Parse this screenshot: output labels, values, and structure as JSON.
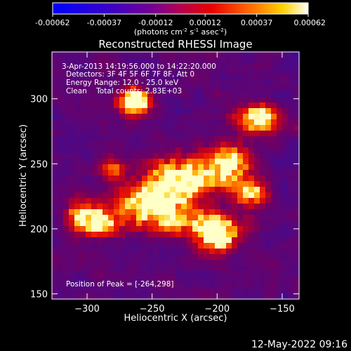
{
  "colorbar": {
    "ticks": [
      "-0.00062",
      "-0.00037",
      "-0.00012",
      "0.00012",
      "0.00037",
      "0.00062"
    ],
    "unit_parts": [
      "(photons cm",
      "-2",
      " s",
      "-1",
      " asec",
      "-2",
      ")"
    ]
  },
  "chart_data": {
    "type": "heatmap",
    "title": "Reconstructed RHESSI Image",
    "xlabel": "Heliocentric X (arcsec)",
    "ylabel": "Heliocentric Y (arcsec)",
    "xlim": [
      -327,
      -137
    ],
    "ylim": [
      146,
      336
    ],
    "xticks": [
      -300,
      -250,
      -200,
      -150
    ],
    "yticks": [
      150,
      200,
      250,
      300
    ],
    "colorbar_range": [
      -0.00062,
      0.00062
    ],
    "peak": [
      -264,
      298
    ],
    "annotations": [
      "3-Apr-2013 14:19:56.000 to 14:22:20.000",
      "Detectors: 3F 4F 5F 6F 7F 8F, Att 0",
      "Energy Range: 12.0 - 25.0 keV",
      "Clean    Total counts: 2.83E+03"
    ],
    "peak_label": "Position of Peak = [-264,298]"
  },
  "footer": {
    "date": "12-May-2022 09:16"
  }
}
